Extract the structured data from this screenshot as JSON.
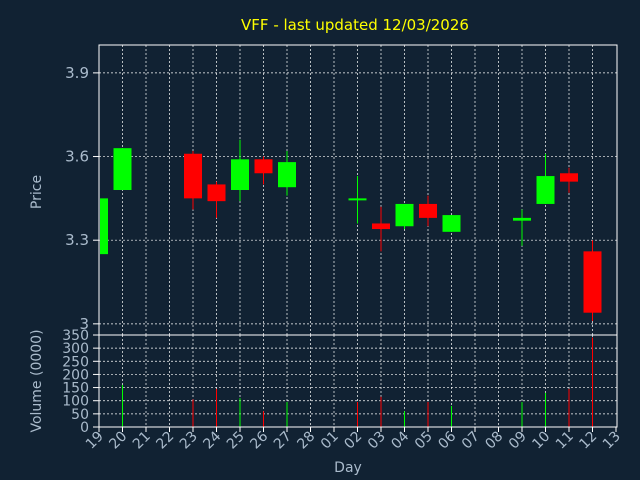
{
  "chart_data": [
    {
      "type": "candlestick",
      "title": "VFF - last updated 12/03/2026",
      "ylabel": "Price",
      "ylim": [
        2.96,
        4.0
      ],
      "y_ticks": [
        3.0,
        3.3,
        3.6,
        3.9
      ],
      "y_tick_labels": [
        "3",
        "3.3",
        "3.6",
        "3.9"
      ],
      "grid": true,
      "categories": [
        "19",
        "20",
        "21",
        "22",
        "23",
        "24",
        "25",
        "26",
        "27",
        "28",
        "01",
        "02",
        "03",
        "04",
        "05",
        "06",
        "07",
        "08",
        "09",
        "10",
        "11",
        "12",
        "13"
      ],
      "series": [
        {
          "x": "19",
          "open": 3.25,
          "high": 3.45,
          "low": 3.25,
          "close": 3.45
        },
        {
          "x": "20",
          "open": 3.48,
          "high": 3.63,
          "low": 3.48,
          "close": 3.63
        },
        {
          "x": "23",
          "open": 3.61,
          "high": 3.62,
          "low": 3.41,
          "close": 3.45
        },
        {
          "x": "24",
          "open": 3.5,
          "high": 3.51,
          "low": 3.38,
          "close": 3.44
        },
        {
          "x": "25",
          "open": 3.48,
          "high": 3.66,
          "low": 3.44,
          "close": 3.59
        },
        {
          "x": "26",
          "open": 3.59,
          "high": 3.6,
          "low": 3.5,
          "close": 3.54
        },
        {
          "x": "27",
          "open": 3.49,
          "high": 3.62,
          "low": 3.46,
          "close": 3.58
        },
        {
          "x": "02",
          "open": 3.45,
          "high": 3.53,
          "low": 3.36,
          "close": 3.45
        },
        {
          "x": "03",
          "open": 3.36,
          "high": 3.42,
          "low": 3.26,
          "close": 3.34
        },
        {
          "x": "04",
          "open": 3.35,
          "high": 3.43,
          "low": 3.34,
          "close": 3.43
        },
        {
          "x": "05",
          "open": 3.43,
          "high": 3.46,
          "low": 3.35,
          "close": 3.38
        },
        {
          "x": "06",
          "open": 3.33,
          "high": 3.39,
          "low": 3.33,
          "close": 3.39
        },
        {
          "x": "09",
          "open": 3.37,
          "high": 3.41,
          "low": 3.28,
          "close": 3.38
        },
        {
          "x": "10",
          "open": 3.43,
          "high": 3.61,
          "low": 3.43,
          "close": 3.53
        },
        {
          "x": "11",
          "open": 3.54,
          "high": 3.56,
          "low": 3.47,
          "close": 3.51
        },
        {
          "x": "12",
          "open": 3.26,
          "high": 3.3,
          "low": 3.01,
          "close": 3.04
        }
      ]
    },
    {
      "type": "bar",
      "ylabel": "Volume (0000)",
      "xlabel": "Day",
      "ylim": [
        0,
        350
      ],
      "y_ticks": [
        0,
        50,
        100,
        150,
        200,
        250,
        300,
        350
      ],
      "y_tick_labels": [
        "0",
        "50",
        "100",
        "150",
        "200",
        "250",
        "300",
        "350"
      ],
      "grid": true,
      "categories": [
        "19",
        "20",
        "21",
        "22",
        "23",
        "24",
        "25",
        "26",
        "27",
        "28",
        "01",
        "02",
        "03",
        "04",
        "05",
        "06",
        "07",
        "08",
        "09",
        "10",
        "11",
        "12",
        "13"
      ],
      "values": [
        {
          "x": "20",
          "value": 160,
          "direction": "up"
        },
        {
          "x": "23",
          "value": 105,
          "direction": "down"
        },
        {
          "x": "24",
          "value": 145,
          "direction": "down"
        },
        {
          "x": "25",
          "value": 110,
          "direction": "up"
        },
        {
          "x": "26",
          "value": 60,
          "direction": "down"
        },
        {
          "x": "27",
          "value": 95,
          "direction": "up"
        },
        {
          "x": "02",
          "value": 95,
          "direction": "down"
        },
        {
          "x": "03",
          "value": 115,
          "direction": "down"
        },
        {
          "x": "04",
          "value": 60,
          "direction": "up"
        },
        {
          "x": "05",
          "value": 95,
          "direction": "down"
        },
        {
          "x": "06",
          "value": 80,
          "direction": "up"
        },
        {
          "x": "09",
          "value": 95,
          "direction": "up"
        },
        {
          "x": "10",
          "value": 130,
          "direction": "up"
        },
        {
          "x": "11",
          "value": 145,
          "direction": "down"
        },
        {
          "x": "12",
          "value": 340,
          "direction": "down"
        }
      ]
    }
  ],
  "colors": {
    "background": "#112233",
    "plot_border": "#ffffff",
    "grid": "#ffffff",
    "title": "#ffff00",
    "axis_text": "#aabbcc",
    "up": "#00ff00",
    "down": "#ff0000"
  }
}
